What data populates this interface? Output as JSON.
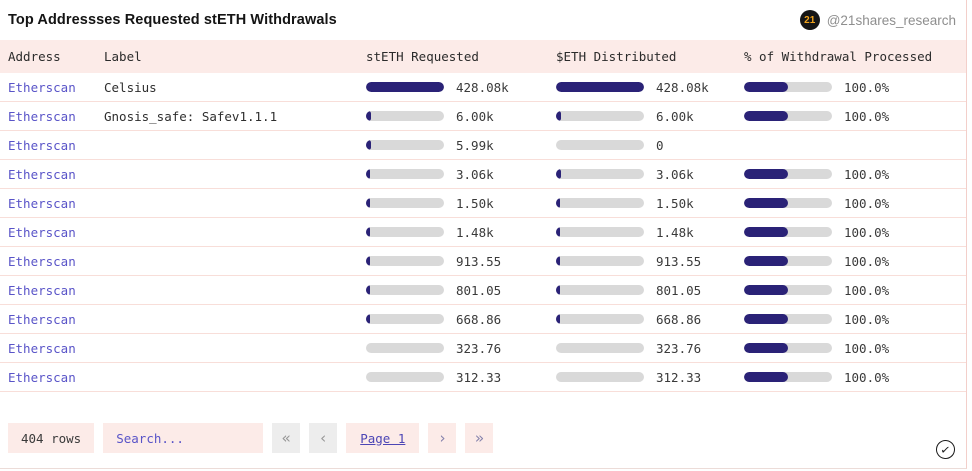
{
  "widget": {
    "title": "Top Addressses Requested stETH Withdrawals",
    "author": {
      "badge": "21",
      "handle": "@21shares_research"
    }
  },
  "table": {
    "columns": {
      "address": "Address",
      "label": "Label",
      "steth": "stETH Requested",
      "eth": "$ETH Distributed",
      "pct": "% of Withdrawal Processed"
    },
    "rows": [
      {
        "address": "Etherscan",
        "label": "Celsius",
        "steth": {
          "value": "428.08k",
          "frac": 1.0
        },
        "eth": {
          "value": "428.08k",
          "frac": 1.0
        },
        "pct": {
          "value": "100.0%",
          "frac": 0.5
        }
      },
      {
        "address": "Etherscan",
        "label": "Gnosis_safe: Safev1.1.1",
        "steth": {
          "value": "6.00k",
          "frac": 0.06
        },
        "eth": {
          "value": "6.00k",
          "frac": 0.06
        },
        "pct": {
          "value": "100.0%",
          "frac": 0.5
        }
      },
      {
        "address": "Etherscan",
        "label": "",
        "steth": {
          "value": "5.99k",
          "frac": 0.06
        },
        "eth": {
          "value": "0",
          "frac": 0.0
        },
        "pct": null
      },
      {
        "address": "Etherscan",
        "label": "",
        "steth": {
          "value": "3.06k",
          "frac": 0.055
        },
        "eth": {
          "value": "3.06k",
          "frac": 0.055
        },
        "pct": {
          "value": "100.0%",
          "frac": 0.5
        }
      },
      {
        "address": "Etherscan",
        "label": "",
        "steth": {
          "value": "1.50k",
          "frac": 0.05
        },
        "eth": {
          "value": "1.50k",
          "frac": 0.05
        },
        "pct": {
          "value": "100.0%",
          "frac": 0.5
        }
      },
      {
        "address": "Etherscan",
        "label": "",
        "steth": {
          "value": "1.48k",
          "frac": 0.05
        },
        "eth": {
          "value": "1.48k",
          "frac": 0.05
        },
        "pct": {
          "value": "100.0%",
          "frac": 0.5
        }
      },
      {
        "address": "Etherscan",
        "label": "",
        "steth": {
          "value": "913.55",
          "frac": 0.05
        },
        "eth": {
          "value": "913.55",
          "frac": 0.05
        },
        "pct": {
          "value": "100.0%",
          "frac": 0.5
        }
      },
      {
        "address": "Etherscan",
        "label": "",
        "steth": {
          "value": "801.05",
          "frac": 0.05
        },
        "eth": {
          "value": "801.05",
          "frac": 0.05
        },
        "pct": {
          "value": "100.0%",
          "frac": 0.5
        }
      },
      {
        "address": "Etherscan",
        "label": "",
        "steth": {
          "value": "668.86",
          "frac": 0.045
        },
        "eth": {
          "value": "668.86",
          "frac": 0.045
        },
        "pct": {
          "value": "100.0%",
          "frac": 0.5
        }
      },
      {
        "address": "Etherscan",
        "label": "",
        "steth": {
          "value": "323.76",
          "frac": 0.0
        },
        "eth": {
          "value": "323.76",
          "frac": 0.0
        },
        "pct": {
          "value": "100.0%",
          "frac": 0.5
        }
      },
      {
        "address": "Etherscan",
        "label": "",
        "steth": {
          "value": "312.33",
          "frac": 0.0
        },
        "eth": {
          "value": "312.33",
          "frac": 0.0
        },
        "pct": {
          "value": "100.0%",
          "frac": 0.5
        }
      }
    ]
  },
  "footer": {
    "row_count": "404 rows",
    "search_placeholder": "Search...",
    "pagination": {
      "first": "«",
      "prev": "‹",
      "page": "Page 1",
      "next": "›",
      "last": "»"
    }
  },
  "icons": {
    "check": "✓"
  },
  "colors": {
    "bar_fill": "#2a2277",
    "bar_track": "#d9d9d9",
    "header_bg": "#fcebe8",
    "link": "#5954c8",
    "badge_bg": "#161616",
    "badge_text": "#f0a31d"
  }
}
